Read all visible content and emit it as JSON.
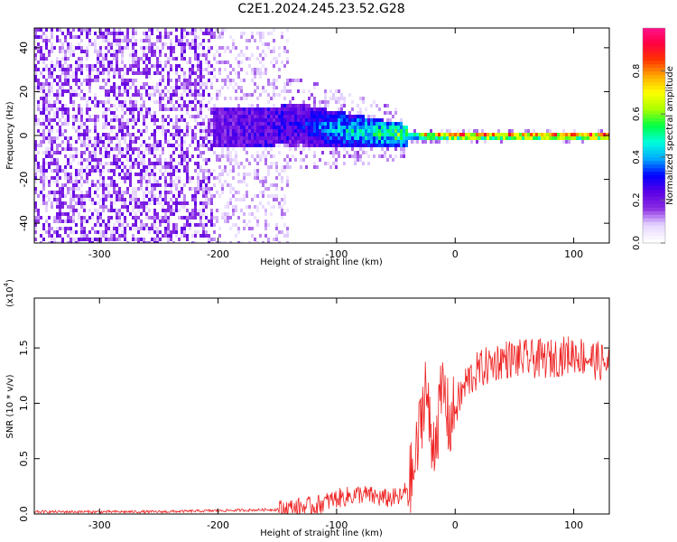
{
  "title": "C2E1.2024.245.23.52.G28",
  "chart_data": [
    {
      "type": "heatmap",
      "xlabel": "Height of straight line (km)",
      "ylabel": "Frequency (Hz)",
      "xlim": [
        -355,
        130
      ],
      "ylim": [
        -49,
        49
      ],
      "xticks": [
        -300,
        -200,
        -100,
        0,
        100
      ],
      "yticks": [
        -40,
        -20,
        0,
        20,
        40
      ],
      "colorbar": {
        "label": "Normalized spectral amplitude",
        "range": [
          0,
          1
        ],
        "ticks": [
          "0.0",
          "0.2",
          "0.4",
          "0.6",
          "0.8"
        ],
        "tick_values": [
          0,
          0.2,
          0.4,
          0.6,
          0.8
        ],
        "colormap": [
          "#ffffff",
          "#e6d6ff",
          "#8a2be2",
          "#5a00e6",
          "#0000ff",
          "#00aaff",
          "#00ffdd",
          "#00ff44",
          "#aaff00",
          "#ffff00",
          "#ffaa00",
          "#ff3300",
          "#ff0044",
          "#ff1493"
        ]
      },
      "ridge": {
        "x": [
          -210,
          -170,
          -130,
          -100,
          -80,
          -60,
          -40,
          -25,
          -10,
          0,
          50,
          130
        ],
        "frequency_hz": [
          4,
          4,
          5,
          3,
          2,
          1,
          0,
          0,
          0,
          0,
          0,
          0
        ],
        "amplitude": [
          0.22,
          0.25,
          0.3,
          0.45,
          0.5,
          0.55,
          0.6,
          0.8,
          0.85,
          0.9,
          0.9,
          0.9
        ]
      },
      "grid": false,
      "legend": "colorbar-right"
    },
    {
      "type": "line",
      "xlabel": "Height of straight line (km)",
      "ylabel": "SNR (10 * v/v)",
      "scale_label": "(x10",
      "scale_exponent": "4",
      "xlim": [
        -355,
        130
      ],
      "ylim": [
        0,
        1.95
      ],
      "xticks": [
        -300,
        -200,
        -100,
        0,
        100
      ],
      "yticks": [
        0.0,
        0.5,
        1.0,
        1.5
      ],
      "ytick_labels": [
        "0.0",
        "0.5",
        "1.0",
        "1.5"
      ],
      "series": [
        {
          "color": "#ee2222",
          "x": [
            -355,
            -300,
            -250,
            -200,
            -150,
            -120,
            -100,
            -80,
            -60,
            -45,
            -35,
            -30,
            -25,
            -20,
            -15,
            -10,
            -5,
            0,
            10,
            20,
            40,
            60,
            80,
            100,
            130
          ],
          "y": [
            0.02,
            0.02,
            0.02,
            0.03,
            0.04,
            0.07,
            0.14,
            0.18,
            0.14,
            0.15,
            0.35,
            0.75,
            1.2,
            0.6,
            0.8,
            1.15,
            0.8,
            0.95,
            1.2,
            1.3,
            1.4,
            1.4,
            1.4,
            1.45,
            1.35
          ]
        }
      ],
      "grid": false,
      "legend": "none"
    }
  ]
}
